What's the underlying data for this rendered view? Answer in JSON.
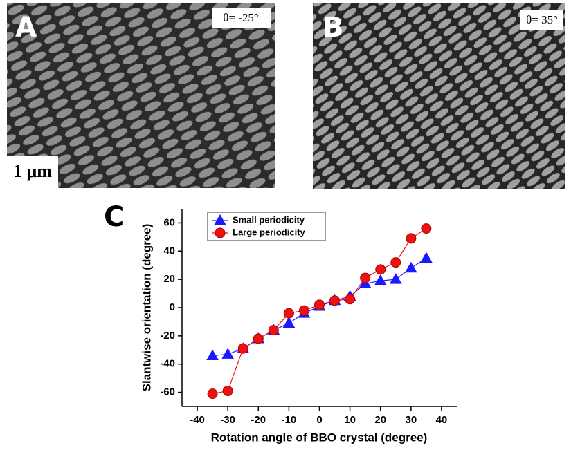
{
  "panels": [
    {
      "label": "A",
      "annotation": "θ= -25°",
      "scale_bar": "1 μm"
    },
    {
      "label": "B",
      "annotation": "θ= 35°"
    }
  ],
  "chart_data": {
    "type": "line",
    "panel_label": "C",
    "x_label": "Rotation angle of BBO crystal (degree)",
    "y_label": "Slantwise orientation (degree)",
    "x": [
      -35,
      -30,
      -25,
      -20,
      -15,
      -10,
      -5,
      0,
      5,
      10,
      15,
      20,
      25,
      30,
      35
    ],
    "series": [
      {
        "name": "Small periodicity",
        "color": "#1a1aff",
        "marker": "triangle",
        "values": [
          -34,
          -33,
          -29,
          -22,
          -16,
          -11,
          -4,
          1,
          5,
          8,
          17,
          19,
          20,
          28,
          35
        ]
      },
      {
        "name": "Large periodicity",
        "color": "#ee1111",
        "marker": "circle",
        "values": [
          -61,
          -59,
          -29,
          -22,
          -16,
          -4,
          -2,
          2,
          5,
          6,
          21,
          27,
          32,
          49,
          56
        ]
      }
    ],
    "xlim": [
      -45,
      45
    ],
    "xticks": [
      -40,
      -30,
      -20,
      -10,
      0,
      10,
      20,
      30,
      40
    ],
    "ylim": [
      -70,
      70
    ],
    "yticks": [
      -60,
      -40,
      -20,
      0,
      20,
      40,
      60
    ],
    "grid": false,
    "legend": "top-left"
  }
}
